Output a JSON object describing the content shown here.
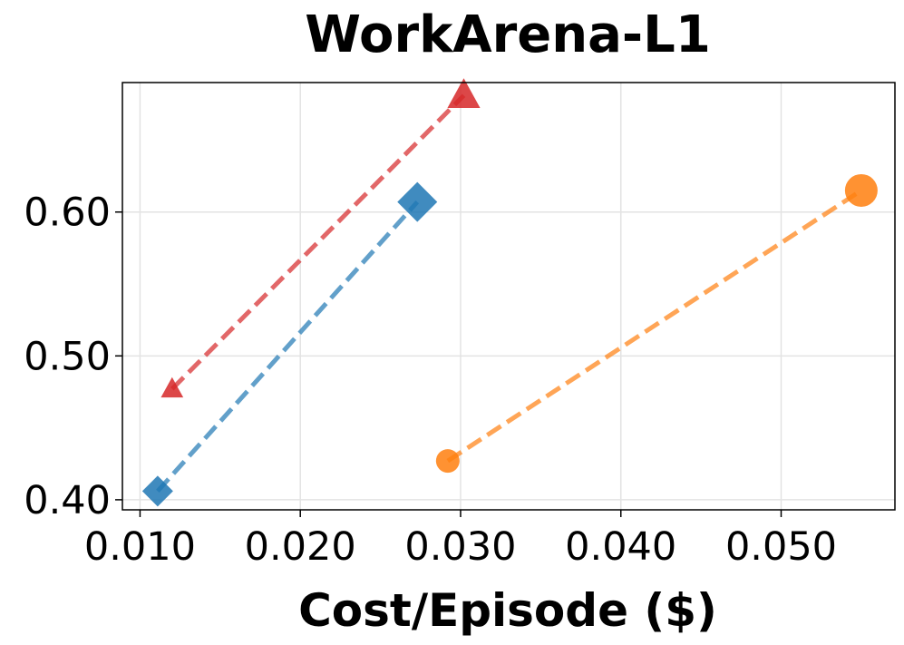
{
  "chart_data": {
    "type": "scatter",
    "title": "WorkArena-L1",
    "xlabel": "Cost/Episode ($)",
    "ylabel": "",
    "xlim": [
      0.0089,
      0.0571
    ],
    "ylim": [
      0.393,
      0.69
    ],
    "xticks": [
      0.01,
      0.02,
      0.03,
      0.04,
      0.05
    ],
    "xtick_labels": [
      "0.010",
      "0.020",
      "0.030",
      "0.040",
      "0.050"
    ],
    "yticks": [
      0.4,
      0.5,
      0.6
    ],
    "ytick_labels": [
      "0.40",
      "0.50",
      "0.60"
    ],
    "grid": true,
    "series": [
      {
        "marker": "triangle",
        "color": "#d62728",
        "points": [
          {
            "x": 0.012,
            "y": 0.477,
            "size": "small"
          },
          {
            "x": 0.0302,
            "y": 0.681,
            "size": "large"
          }
        ]
      },
      {
        "marker": "diamond",
        "color": "#1f77b4",
        "points": [
          {
            "x": 0.0111,
            "y": 0.406,
            "size": "small"
          },
          {
            "x": 0.0273,
            "y": 0.607,
            "size": "large"
          }
        ]
      },
      {
        "marker": "circle",
        "color": "#ff7f0e",
        "points": [
          {
            "x": 0.0292,
            "y": 0.427,
            "size": "small"
          },
          {
            "x": 0.055,
            "y": 0.615,
            "size": "large"
          }
        ]
      }
    ]
  }
}
